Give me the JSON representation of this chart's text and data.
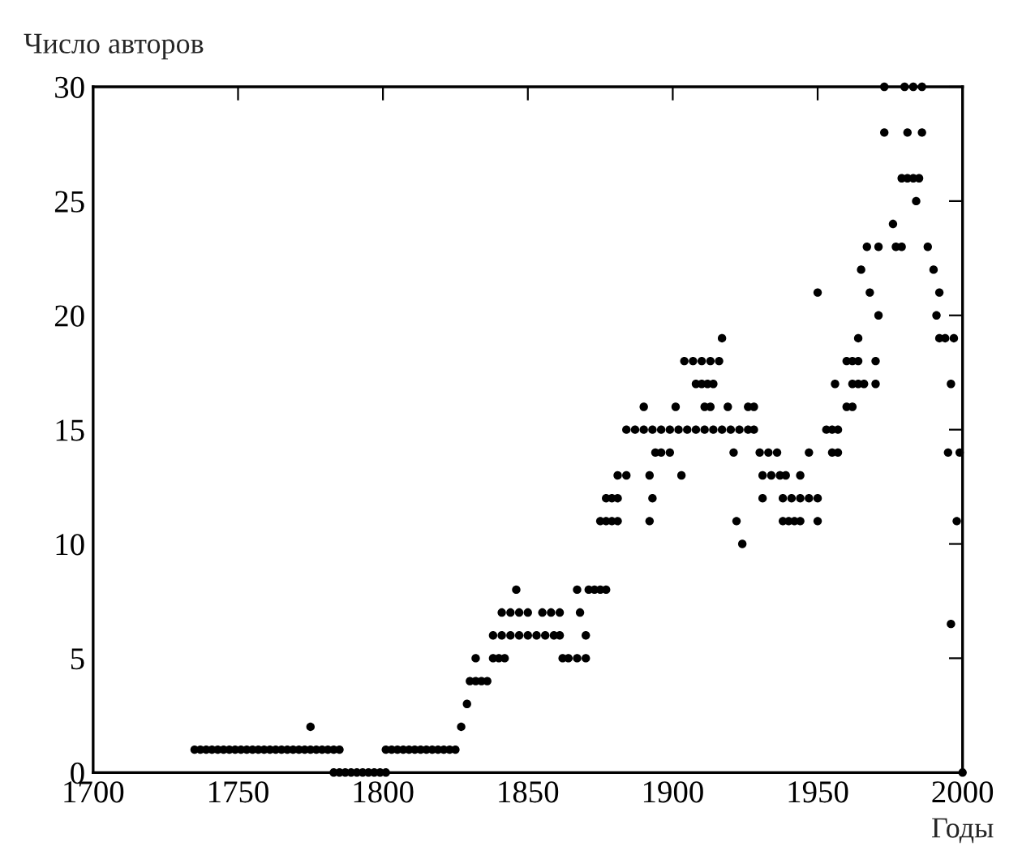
{
  "chart_data": {
    "type": "scatter",
    "xlabel": "Годы",
    "ylabel": "Число авторов",
    "xlim": [
      1700,
      2000
    ],
    "ylim": [
      0,
      30
    ],
    "xticks": [
      1700,
      1750,
      1800,
      1850,
      1900,
      1950,
      2000
    ],
    "yticks": [
      0,
      5,
      10,
      15,
      20,
      25,
      30
    ],
    "grid": false,
    "marker": "circle",
    "series": [
      {
        "color": "#000000",
        "x": [
          1735,
          1737,
          1739,
          1741,
          1743,
          1745,
          1747,
          1749,
          1751,
          1753,
          1755,
          1757,
          1759,
          1761,
          1763,
          1765,
          1767,
          1769,
          1771,
          1773,
          1775,
          1777,
          1779,
          1781,
          1783,
          1785,
          1775,
          1783,
          1785,
          1787,
          1789,
          1791,
          1793,
          1795,
          1797,
          1799,
          1801,
          1801,
          1803,
          1805,
          1807,
          1809,
          1811,
          1813,
          1815,
          1817,
          1819,
          1821,
          1823,
          1825,
          1827,
          1829,
          1830,
          1832,
          1834,
          1836,
          1832,
          1838,
          1840,
          1842,
          1862,
          1864,
          1867,
          1870,
          1838,
          1841,
          1844,
          1847,
          1850,
          1853,
          1856,
          1859,
          1861,
          1870,
          1841,
          1844,
          1847,
          1850,
          1855,
          1858,
          1861,
          1868,
          1846,
          1867,
          1871,
          1873,
          1875,
          1877,
          1875,
          1877,
          1879,
          1881,
          1892,
          1922,
          1938,
          1940,
          1942,
          1944,
          1950,
          1998,
          1924,
          1877,
          1879,
          1881,
          1893,
          1931,
          1938,
          1941,
          1944,
          1947,
          1950,
          1881,
          1884,
          1892,
          1903,
          1931,
          1934,
          1937,
          1939,
          1944,
          1894,
          1896,
          1899,
          1921,
          1930,
          1933,
          1936,
          1947,
          1955,
          1957,
          1995,
          1999,
          1884,
          1887,
          1890,
          1893,
          1896,
          1899,
          1902,
          1905,
          1908,
          1911,
          1914,
          1917,
          1920,
          1923,
          1926,
          1928,
          1953,
          1955,
          1957,
          1890,
          1901,
          1911,
          1913,
          1919,
          1926,
          1928,
          1960,
          1962,
          1908,
          1910,
          1912,
          1914,
          1956,
          1962,
          1964,
          1966,
          1970,
          1996,
          1904,
          1907,
          1910,
          1913,
          1916,
          1960,
          1962,
          1964,
          1970,
          1917,
          1964,
          1992,
          1994,
          1997,
          1971,
          1991,
          1950,
          1968,
          1992,
          1965,
          1990,
          1967,
          1971,
          1977,
          1979,
          1988,
          1976,
          1984,
          1979,
          1981,
          1983,
          1985,
          1973,
          1981,
          1986,
          1973,
          1980,
          1983,
          1986,
          1996,
          2000
        ],
        "values": [
          1,
          1,
          1,
          1,
          1,
          1,
          1,
          1,
          1,
          1,
          1,
          1,
          1,
          1,
          1,
          1,
          1,
          1,
          1,
          1,
          1,
          1,
          1,
          1,
          1,
          1,
          2,
          0,
          0,
          0,
          0,
          0,
          0,
          0,
          0,
          0,
          0,
          1,
          1,
          1,
          1,
          1,
          1,
          1,
          1,
          1,
          1,
          1,
          1,
          1,
          2,
          3,
          4,
          4,
          4,
          4,
          5,
          5,
          5,
          5,
          5,
          5,
          5,
          5,
          6,
          6,
          6,
          6,
          6,
          6,
          6,
          6,
          6,
          6,
          7,
          7,
          7,
          7,
          7,
          7,
          7,
          7,
          8,
          8,
          8,
          8,
          8,
          8,
          11,
          11,
          11,
          11,
          11,
          11,
          11,
          11,
          11,
          11,
          11,
          11,
          10,
          12,
          12,
          12,
          12,
          12,
          12,
          12,
          12,
          12,
          12,
          13,
          13,
          13,
          13,
          13,
          13,
          13,
          13,
          13,
          14,
          14,
          14,
          14,
          14,
          14,
          14,
          14,
          14,
          14,
          14,
          14,
          15,
          15,
          15,
          15,
          15,
          15,
          15,
          15,
          15,
          15,
          15,
          15,
          15,
          15,
          15,
          15,
          15,
          15,
          15,
          16,
          16,
          16,
          16,
          16,
          16,
          16,
          16,
          16,
          17,
          17,
          17,
          17,
          17,
          17,
          17,
          17,
          17,
          17,
          18,
          18,
          18,
          18,
          18,
          18,
          18,
          18,
          18,
          19,
          19,
          19,
          19,
          19,
          20,
          20,
          21,
          21,
          21,
          22,
          22,
          23,
          23,
          23,
          23,
          23,
          24,
          25,
          26,
          26,
          26,
          26,
          28,
          28,
          28,
          30,
          30,
          30,
          30,
          6.5,
          0
        ]
      }
    ]
  }
}
